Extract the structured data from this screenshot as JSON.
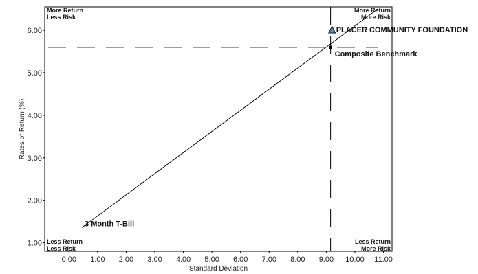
{
  "chart_data": {
    "type": "scatter",
    "xlabel": "Standard Deviation",
    "ylabel": "Rates of Return (%)",
    "xlim": [
      -0.85,
      11.3
    ],
    "ylim": [
      0.8,
      6.55
    ],
    "x_ticks": [
      "0.00",
      "1.00",
      "2.00",
      "3.00",
      "4.00",
      "5.00",
      "6.00",
      "7.00",
      "8.00",
      "9.00",
      "10.00",
      "11.00"
    ],
    "x_tick_values": [
      0,
      1,
      2,
      3,
      4,
      5,
      6,
      7,
      8,
      9,
      10,
      11
    ],
    "y_ticks": [
      "1.00",
      "2.00",
      "3.00",
      "4.00",
      "5.00",
      "6.00"
    ],
    "y_tick_values": [
      1,
      2,
      3,
      4,
      5,
      6
    ],
    "grid": false,
    "quadrant_labels": {
      "top_left": [
        "More Return",
        "Less Risk"
      ],
      "top_right": [
        "More Return",
        "More Risk"
      ],
      "bottom_left": [
        "Less Return",
        "Less Risk"
      ],
      "bottom_right": [
        "Less Return",
        "More Risk"
      ]
    },
    "points": [
      {
        "label": "3 Month T-Bill",
        "x": 0.45,
        "y": 1.36,
        "marker": "none"
      },
      {
        "label": "Composite Benchmark",
        "x": 9.15,
        "y": 5.6,
        "marker": "dot"
      },
      {
        "label": "PLACER COMMUNITY FOUNDATION",
        "x": 9.2,
        "y": 6.0,
        "marker": "triangle",
        "color": "#5b87b8"
      }
    ],
    "market_line": {
      "from": [
        0.45,
        1.36
      ],
      "to": [
        10.8,
        6.5
      ]
    },
    "benchmark_crosshair": {
      "x": 9.15,
      "y": 5.6
    }
  }
}
